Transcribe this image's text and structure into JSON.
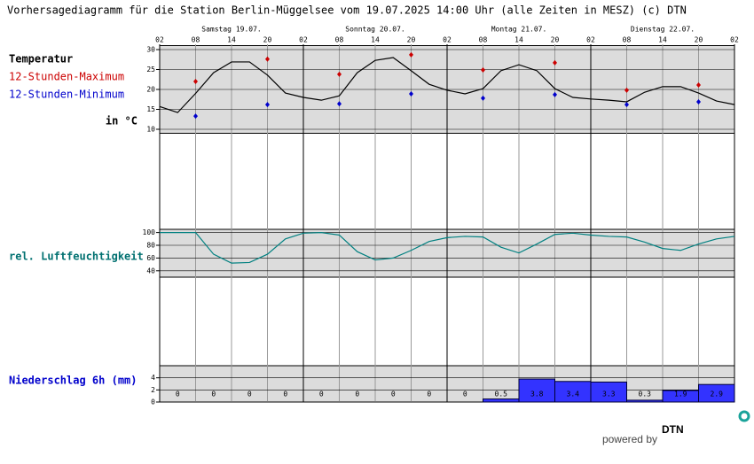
{
  "header": {
    "title": "Vorhersagediagramm für die Station Berlin-Müggelsee vom 19.07.2025 14:00 Uhr (alle Zeiten in MESZ)   (c) DTN",
    "days": [
      "Samstag 19.07.",
      "Sonntag 20.07.",
      "Montag 21.07.",
      "Dienstag 22.07."
    ]
  },
  "chart_data": [
    {
      "type": "line",
      "title": "Temperatur",
      "y_label": "in °C",
      "categories": [
        "02",
        null,
        "08",
        null,
        "14",
        null,
        "20",
        null,
        "02",
        null,
        "08",
        null,
        "14",
        null,
        "20",
        null,
        "02",
        null,
        "08",
        null,
        "14",
        null,
        "20",
        null,
        "02",
        null,
        "08",
        null,
        "14",
        null,
        "20",
        null,
        "02"
      ],
      "series": [
        {
          "name": "Temperatur",
          "color": "#000000",
          "mode": "line",
          "values": [
            15.7,
            14.2,
            19,
            24.2,
            26.9,
            26.9,
            23.6,
            19.1,
            18,
            17.3,
            18.4,
            24.2,
            27.3,
            28,
            24.7,
            21.3,
            19.8,
            18.9,
            20.2,
            24.7,
            26.2,
            24.7,
            20.2,
            18,
            17.6,
            17.3,
            16.9,
            19.3,
            20.7,
            20.7,
            19.1,
            17.1,
            16.2
          ]
        },
        {
          "name": "12-Stunden-Maximum",
          "color": "#cc0000",
          "mode": "markers",
          "values": [
            null,
            null,
            22,
            null,
            null,
            null,
            27.6,
            null,
            null,
            null,
            23.8,
            null,
            null,
            null,
            28.7,
            null,
            null,
            null,
            24.9,
            null,
            null,
            null,
            26.7,
            null,
            null,
            null,
            19.8,
            null,
            null,
            null,
            21.1,
            null,
            null
          ]
        },
        {
          "name": "12-Stunden-Minimum",
          "color": "#0000cc",
          "mode": "markers",
          "values": [
            null,
            null,
            13.3,
            null,
            null,
            null,
            16.2,
            null,
            null,
            null,
            16.4,
            null,
            null,
            null,
            18.9,
            null,
            null,
            null,
            17.8,
            null,
            null,
            null,
            18.7,
            null,
            null,
            null,
            16.2,
            null,
            null,
            null,
            16.9,
            null,
            null
          ]
        }
      ],
      "ylim": [
        9,
        31
      ],
      "yticks": [
        10,
        15,
        20,
        25,
        30
      ],
      "grid": true
    },
    {
      "type": "line",
      "title": "rel. Luftfeuchtigkeit",
      "series": [
        {
          "color": "#008080",
          "mode": "line",
          "values": [
            100,
            100,
            100,
            66,
            52,
            53,
            66,
            90,
            99,
            100,
            96,
            70,
            57,
            60,
            72,
            86,
            92,
            94,
            93,
            77,
            68,
            82,
            97,
            99,
            96,
            94,
            93,
            85,
            75,
            72,
            82,
            90,
            94
          ]
        }
      ],
      "ylim": [
        30,
        105
      ],
      "yticks": [
        40,
        60,
        80,
        100
      ],
      "grid": true
    },
    {
      "type": "bar",
      "title": "Niederschlag 6h (mm)",
      "color": "#3333ff",
      "values": [
        0,
        0,
        0,
        0,
        0,
        0,
        0,
        0,
        0,
        0.5,
        3.8,
        3.4,
        3.3,
        0.3,
        1.9,
        2.9
      ],
      "ylim": [
        0,
        6
      ],
      "yticks": [
        0,
        2,
        4
      ],
      "grid": true
    }
  ],
  "footer": {
    "powered_by": "powered by",
    "logo": "DTN"
  }
}
